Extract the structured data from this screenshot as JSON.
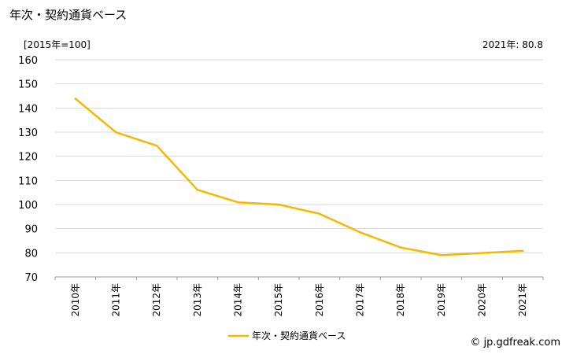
{
  "title": "年次・契約通貨ベース",
  "unit_label": "[2015年=100]",
  "latest_label": "2021年: 80.8",
  "source": "© jp.gdfreak.com",
  "colors": {
    "line": "#f5b800",
    "grid": "#d9d9d9",
    "axis": "#999999"
  },
  "chart_data": {
    "type": "line",
    "title": "年次・契約通貨ベース",
    "categories": [
      "2010年",
      "2011年",
      "2012年",
      "2013年",
      "2014年",
      "2015年",
      "2016年",
      "2017年",
      "2018年",
      "2019年",
      "2020年",
      "2021年"
    ],
    "series": [
      {
        "name": "年次・契約通貨ベース",
        "values": [
          143.9,
          129.9,
          124.4,
          106.1,
          100.9,
          100.0,
          96.2,
          88.5,
          82.2,
          79.0,
          79.9,
          80.8
        ]
      }
    ],
    "yticks": [
      "160",
      "150",
      "140",
      "130",
      "120",
      "110",
      "100",
      "90",
      "80",
      "70"
    ],
    "ylim": [
      70,
      160
    ],
    "grid": true,
    "legend": "bottom"
  }
}
